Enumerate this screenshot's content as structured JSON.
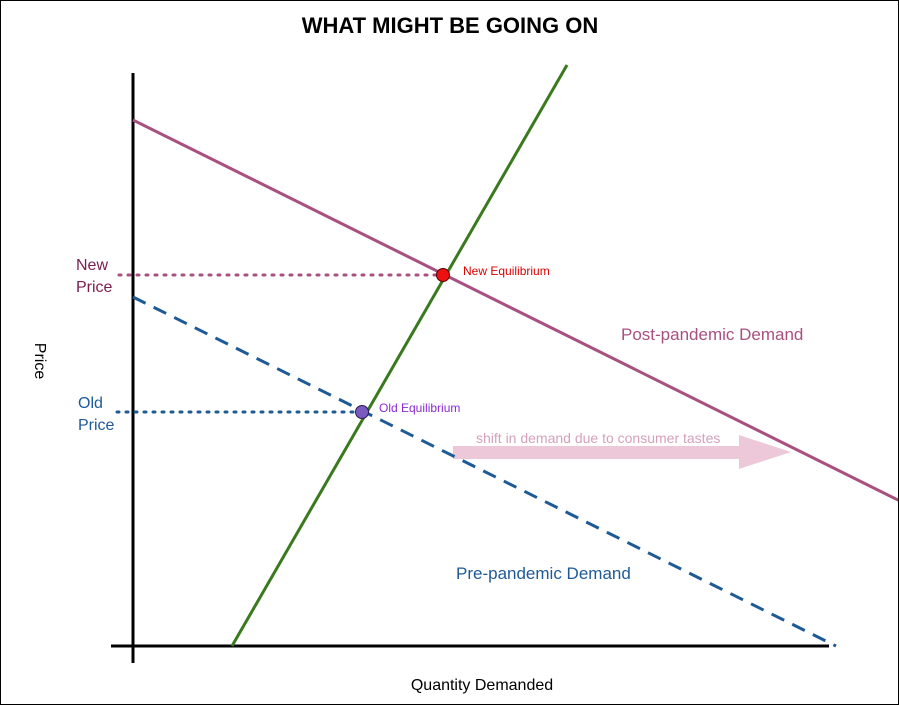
{
  "diagram": {
    "title": "WHAT MIGHT BE GOING ON",
    "x_axis_label": "Quantity Demanded",
    "y_axis_label": "Price",
    "price_levels": {
      "new": {
        "line1": "New",
        "line2": "Price"
      },
      "old": {
        "line1": "Old",
        "line2": "Price"
      }
    },
    "equilibria": {
      "new": "New Equilibrium",
      "old": "Old Equilibrium"
    },
    "curves": {
      "post_demand": "Post-pandemic Demand",
      "pre_demand": "Pre-pandemic Demand"
    },
    "shift_label": "shift in demand due to consumer tastes"
  },
  "colors": {
    "supply": "#3a7a1e",
    "post_demand": "#a85080",
    "pre_demand": "#1e5a96",
    "new_price": "#7a2050",
    "new_equilibrium_dot": "#ee1111",
    "new_equilibrium_text": "#dd0000",
    "old_equilibrium_dot": "#7a5ac0",
    "old_equilibrium_text": "#8a2ad0",
    "shift_arrow": "#ecc8d8",
    "shift_text": "#d4a0bc"
  }
}
